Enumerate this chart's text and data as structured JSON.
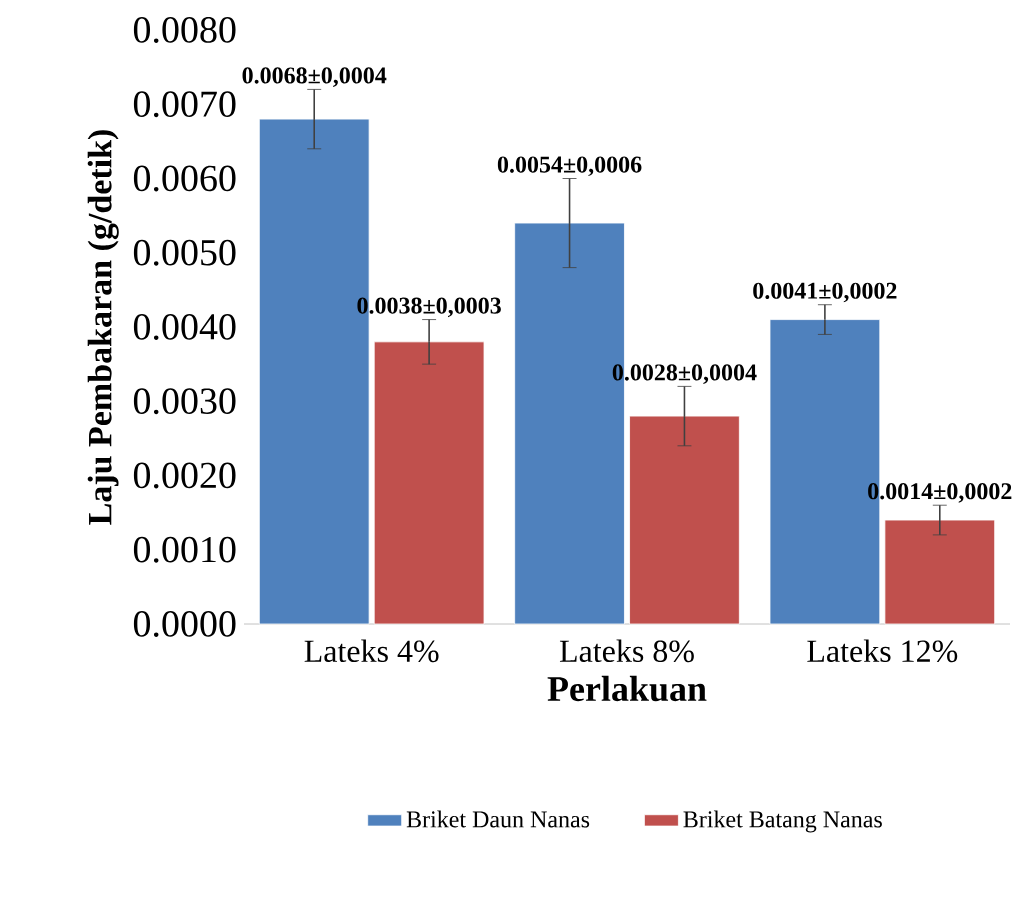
{
  "chart_data": {
    "type": "bar",
    "xlabel": "Perlakuan",
    "ylabel": "Laju Pembakaran (g/detik)",
    "categories": [
      "Lateks 4%",
      "Lateks 8%",
      "Lateks 12%"
    ],
    "ylim": [
      0,
      0.008
    ],
    "yticks": [
      {
        "value": 0,
        "label": "0.0000"
      },
      {
        "value": 0.001,
        "label": "0.0010"
      },
      {
        "value": 0.002,
        "label": "0.0020"
      },
      {
        "value": 0.003,
        "label": "0.0030"
      },
      {
        "value": 0.004,
        "label": "0.0040"
      },
      {
        "value": 0.005,
        "label": "0.0050"
      },
      {
        "value": 0.006,
        "label": "0.0060"
      },
      {
        "value": 0.007,
        "label": "0.0070"
      },
      {
        "value": 0.008,
        "label": "0.0080"
      }
    ],
    "legend": "bottom",
    "series": [
      {
        "name": "Briket Daun Nanas",
        "color": "#4f81bd",
        "values": [
          0.0068,
          0.0054,
          0.0041
        ],
        "errors": [
          0.0004,
          0.0006,
          0.0002
        ],
        "value_labels": [
          "0.0068±0,0004",
          "0.0054±0,0006",
          "0.0041±0,0002"
        ]
      },
      {
        "name": "Briket Batang Nanas",
        "color": "#c0504d",
        "values": [
          0.0038,
          0.0028,
          0.0014
        ],
        "errors": [
          0.0003,
          0.0004,
          0.0002
        ],
        "value_labels": [
          "0.0038±0,0003",
          "0.0028±0,0004",
          "0.0014±0,0002"
        ]
      }
    ]
  }
}
